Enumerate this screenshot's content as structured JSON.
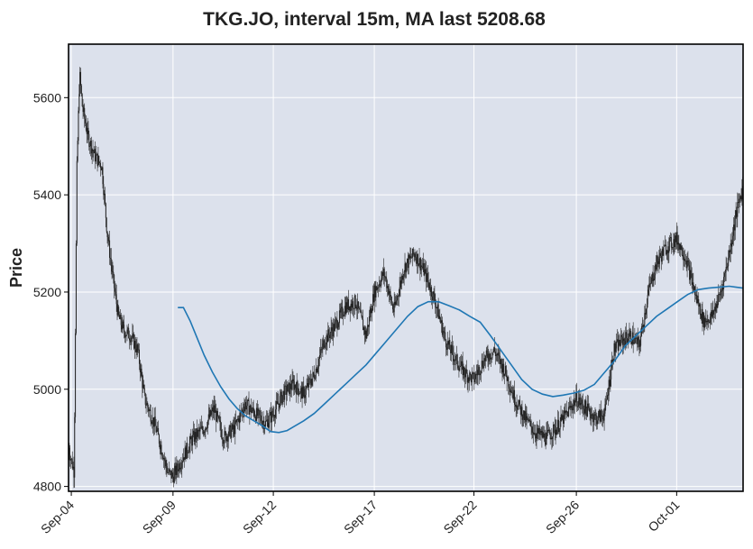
{
  "chart_data": {
    "type": "candlestick-line",
    "title": "TKG.JO, interval 15m, MA last 5208.68",
    "ylabel": "Price",
    "xlabel": "",
    "ylim": [
      4790,
      5710
    ],
    "grid": true,
    "yticks": [
      4800,
      5000,
      5200,
      5400,
      5600
    ],
    "xticks": [
      {
        "label": "Sep-04",
        "x": 0.4
      },
      {
        "label": "Sep-09",
        "x": 15.1
      },
      {
        "label": "Sep-12",
        "x": 29.6
      },
      {
        "label": "Sep-17",
        "x": 44.2
      },
      {
        "label": "Sep-22",
        "x": 58.6
      },
      {
        "label": "Sep-26",
        "x": 73.4
      },
      {
        "label": "Oct-01",
        "x": 87.9
      }
    ],
    "xlim": [
      0,
      97.5
    ],
    "colors": {
      "price": "#222222",
      "ma": "#1f77b4",
      "plot_bg": "#dce1ec",
      "grid": "#ffffff"
    },
    "price_series": {
      "name": "",
      "x": [
        0,
        0.8,
        1.2,
        1.6,
        2.0,
        2.8,
        3.8,
        4.8,
        5.6,
        6.4,
        7.2,
        8.0,
        9.0,
        10.0,
        11.0,
        12.4,
        13.6,
        14.3,
        15.1,
        16.5,
        18.0,
        19.6,
        21.0,
        22.4,
        24.0,
        25.5,
        27.0,
        28.5,
        29.6,
        31.0,
        32.5,
        34.0,
        35.5,
        37.0,
        38.5,
        40.0,
        41.5,
        43.0,
        44.2,
        45.6,
        47.0,
        48.5,
        50.0,
        51.5,
        53.0,
        54.5,
        56.0,
        57.5,
        58.6,
        60.0,
        61.5,
        63.0,
        64.5,
        66.0,
        67.5,
        69.0,
        70.5,
        72.0,
        73.4,
        74.8,
        76.2,
        77.5,
        78.8,
        80.0,
        81.2,
        82.5,
        83.8,
        85.0,
        86.3,
        87.9,
        89.2,
        90.5,
        91.8,
        93.0,
        94.3,
        95.5,
        96.5,
        97.5
      ],
      "y": [
        4880,
        4830,
        5450,
        5650,
        5580,
        5520,
        5480,
        5460,
        5320,
        5230,
        5150,
        5120,
        5110,
        5080,
        4980,
        4930,
        4870,
        4830,
        4820,
        4860,
        4900,
        4920,
        4960,
        4900,
        4920,
        4970,
        4950,
        4930,
        4950,
        4990,
        5010,
        4990,
        5030,
        5100,
        5130,
        5170,
        5180,
        5110,
        5200,
        5240,
        5160,
        5250,
        5280,
        5240,
        5180,
        5100,
        5060,
        5030,
        5020,
        5060,
        5080,
        5040,
        4980,
        4940,
        4910,
        4900,
        4920,
        4950,
        4980,
        4960,
        4940,
        4950,
        5080,
        5100,
        5110,
        5090,
        5200,
        5260,
        5290,
        5310,
        5270,
        5200,
        5140,
        5150,
        5200,
        5280,
        5360,
        5420
      ]
    },
    "ma_series": {
      "name": "",
      "x": [
        15.8,
        16.6,
        17.6,
        18.6,
        19.6,
        20.8,
        22.0,
        23.2,
        24.4,
        25.6,
        26.8,
        28.0,
        29.2,
        30.4,
        31.6,
        32.8,
        34.0,
        35.5,
        37.0,
        38.5,
        40.0,
        41.5,
        43.0,
        44.5,
        46.0,
        47.5,
        49.0,
        50.5,
        52.0,
        53.5,
        55.0,
        56.5,
        58.0,
        59.5,
        61.0,
        62.5,
        64.0,
        65.5,
        67.0,
        68.5,
        70.0,
        71.5,
        73.0,
        74.5,
        76.0,
        77.5,
        79.0,
        80.5,
        82.0,
        83.5,
        85.0,
        86.5,
        88.0,
        89.5,
        91.0,
        92.5,
        94.0,
        95.5,
        96.5,
        97.5
      ],
      "y": [
        5168,
        5168,
        5140,
        5105,
        5070,
        5035,
        5005,
        4980,
        4960,
        4945,
        4935,
        4925,
        4913,
        4911,
        4915,
        4925,
        4935,
        4950,
        4970,
        4990,
        5010,
        5030,
        5050,
        5075,
        5100,
        5125,
        5150,
        5170,
        5180,
        5180,
        5172,
        5163,
        5150,
        5138,
        5110,
        5080,
        5050,
        5020,
        5000,
        4990,
        4985,
        4988,
        4992,
        4998,
        5010,
        5035,
        5060,
        5090,
        5110,
        5130,
        5150,
        5165,
        5180,
        5195,
        5205,
        5208,
        5210,
        5212,
        5210,
        5208
      ]
    }
  }
}
